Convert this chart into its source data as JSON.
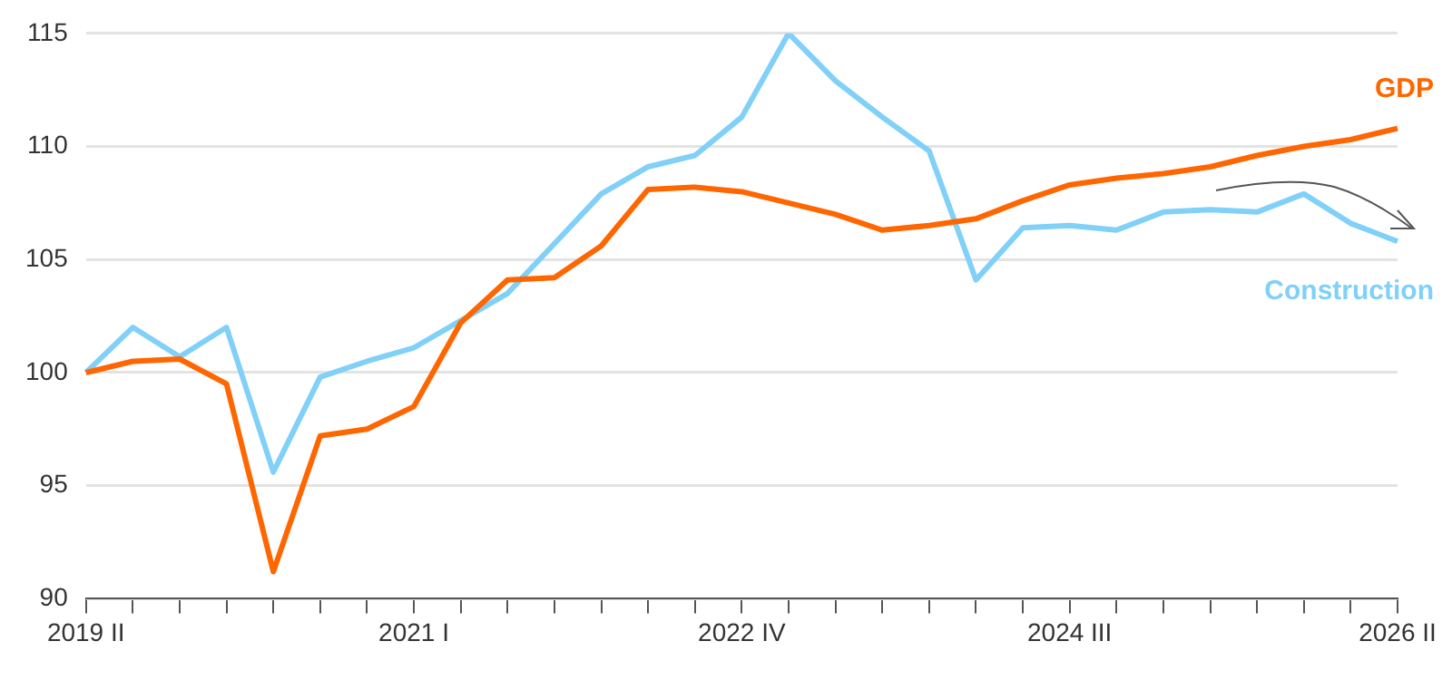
{
  "chart_data": {
    "type": "line",
    "categories": [
      "2019 II",
      null,
      null,
      null,
      null,
      null,
      null,
      "2021 I",
      null,
      null,
      null,
      null,
      null,
      null,
      "2022 IV",
      null,
      null,
      null,
      null,
      null,
      null,
      "2024 III",
      null,
      null,
      null,
      null,
      null,
      null,
      "2026 II"
    ],
    "series": [
      {
        "name": "GDP",
        "color": "#ff6600",
        "values": [
          100.0,
          100.5,
          100.6,
          99.5,
          91.2,
          97.2,
          97.5,
          98.5,
          102.2,
          104.1,
          104.2,
          105.6,
          108.1,
          108.2,
          108.0,
          107.5,
          107.0,
          106.3,
          106.5,
          106.8,
          107.6,
          108.3,
          108.6,
          108.8,
          109.1,
          109.6,
          110.0,
          110.3,
          110.8
        ]
      },
      {
        "name": "Construction",
        "color": "#80d0f8",
        "values": [
          100.0,
          102.0,
          100.7,
          102.0,
          95.6,
          99.8,
          100.5,
          101.1,
          102.3,
          103.5,
          105.7,
          107.9,
          109.1,
          109.6,
          111.3,
          115.0,
          112.9,
          111.3,
          109.8,
          104.1,
          106.4,
          106.5,
          106.3,
          107.1,
          107.2,
          107.1,
          107.9,
          106.6,
          105.8
        ]
      }
    ],
    "ylim": [
      90,
      115
    ],
    "yticks": [
      90,
      95,
      100,
      105,
      110,
      115
    ],
    "grid": "y",
    "legend": false,
    "marker": "none",
    "line_style": "solid"
  }
}
